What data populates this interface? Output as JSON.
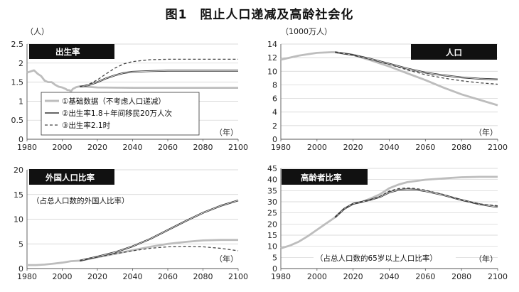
{
  "title": "图1　阻止人口递减及高龄社会化",
  "colors": {
    "baseline": "#bdbdbd",
    "scenario2": "#333333",
    "scenario3": "#444444",
    "grid": "#cfcfcf",
    "axis": "#555555",
    "banner": "#111111"
  },
  "chart_data": [
    {
      "type": "line",
      "title": "出生率",
      "unit_label": "（人）",
      "xlabel": "（年）",
      "xlim": [
        1980,
        2100
      ],
      "ylim": [
        0,
        2.5
      ],
      "yticks": [
        0,
        0.5,
        1,
        1.5,
        2,
        2.5
      ],
      "ytick_labels": [
        "0",
        "0.5",
        "1",
        "1.5",
        "2",
        "2.5"
      ],
      "xticks": [
        1980,
        2000,
        2020,
        2040,
        2060,
        2080,
        2100
      ],
      "grid": "horizontal",
      "legend_position": "bottom-left",
      "legend": [
        "①基础数据（不考虑人口递减）",
        "②出生率1.8＋年间移民20万人次",
        "③出生率2.1时"
      ],
      "series": [
        {
          "name": "①基础数据（不考虑人口递减）",
          "style": "baseline",
          "x": [
            1980,
            1982,
            1984,
            1986,
            1988,
            1990,
            1992,
            1994,
            1996,
            1998,
            2000,
            2002,
            2003,
            2004,
            2005,
            2006,
            2008,
            2010,
            2020,
            2040,
            2060,
            2080,
            2100
          ],
          "y": [
            1.75,
            1.78,
            1.81,
            1.72,
            1.66,
            1.54,
            1.5,
            1.5,
            1.43,
            1.38,
            1.36,
            1.32,
            1.29,
            1.29,
            1.26,
            1.32,
            1.37,
            1.39,
            1.36,
            1.35,
            1.35,
            1.35,
            1.35
          ]
        },
        {
          "name": "②出生率1.8＋年间移民20万人次",
          "style": "double",
          "x": [
            2010,
            2015,
            2020,
            2025,
            2030,
            2035,
            2040,
            2050,
            2060,
            2080,
            2100
          ],
          "y": [
            1.38,
            1.42,
            1.5,
            1.6,
            1.68,
            1.74,
            1.77,
            1.79,
            1.8,
            1.8,
            1.8
          ]
        },
        {
          "name": "③出生率2.1时",
          "style": "dashed",
          "x": [
            2010,
            2015,
            2020,
            2025,
            2030,
            2035,
            2040,
            2050,
            2060,
            2080,
            2100
          ],
          "y": [
            1.38,
            1.44,
            1.56,
            1.72,
            1.87,
            1.98,
            2.04,
            2.09,
            2.1,
            2.1,
            2.1
          ]
        }
      ]
    },
    {
      "type": "line",
      "title": "人口",
      "unit_label": "（1000万人）",
      "xlabel": "（年）",
      "xlim": [
        1980,
        2100
      ],
      "ylim": [
        0,
        14
      ],
      "yticks": [
        0,
        2,
        4,
        6,
        8,
        10,
        12,
        14
      ],
      "ytick_labels": [
        "0",
        "2",
        "4",
        "6",
        "8",
        "10",
        "12",
        "14"
      ],
      "xticks": [
        1980,
        2000,
        2020,
        2040,
        2060,
        2080,
        2100
      ],
      "grid": "horizontal",
      "series": [
        {
          "style": "baseline",
          "x": [
            1980,
            1990,
            2000,
            2008,
            2010,
            2020,
            2030,
            2040,
            2050,
            2060,
            2070,
            2080,
            2090,
            2100
          ],
          "y": [
            11.7,
            12.3,
            12.7,
            12.8,
            12.8,
            12.4,
            11.6,
            10.7,
            9.7,
            8.7,
            7.6,
            6.6,
            5.8,
            5.0
          ]
        },
        {
          "style": "double",
          "x": [
            2010,
            2020,
            2030,
            2040,
            2050,
            2060,
            2070,
            2080,
            2090,
            2100
          ],
          "y": [
            12.8,
            12.4,
            11.8,
            11.1,
            10.4,
            9.8,
            9.4,
            9.1,
            8.9,
            8.8
          ]
        },
        {
          "style": "dashed",
          "x": [
            2010,
            2020,
            2030,
            2040,
            2050,
            2060,
            2070,
            2080,
            2090,
            2100
          ],
          "y": [
            12.8,
            12.4,
            11.7,
            11.0,
            10.2,
            9.5,
            9.0,
            8.6,
            8.3,
            8.1
          ]
        }
      ]
    },
    {
      "type": "line",
      "title": "外国人口比率",
      "subtitle": "（占总人口数的外国人比率）",
      "xlabel": "（年）",
      "xlim": [
        1980,
        2100
      ],
      "ylim": [
        0,
        20
      ],
      "yticks": [
        0,
        5,
        10,
        15,
        20
      ],
      "ytick_labels": [
        "0",
        "5",
        "10",
        "15",
        "20"
      ],
      "xticks": [
        1980,
        2000,
        2020,
        2040,
        2060,
        2080,
        2100
      ],
      "grid": "horizontal",
      "series": [
        {
          "style": "baseline",
          "x": [
            1980,
            1985,
            1990,
            1995,
            2000,
            2005,
            2010,
            2020,
            2030,
            2040,
            2050,
            2060,
            2070,
            2080,
            2090,
            2100
          ],
          "y": [
            0.7,
            0.7,
            0.8,
            1.0,
            1.2,
            1.5,
            1.6,
            2.3,
            3.0,
            3.7,
            4.4,
            5.0,
            5.4,
            5.7,
            5.8,
            5.8
          ]
        },
        {
          "style": "double",
          "x": [
            2010,
            2020,
            2030,
            2040,
            2050,
            2060,
            2070,
            2080,
            2090,
            2100
          ],
          "y": [
            1.6,
            2.4,
            3.3,
            4.5,
            6.0,
            7.8,
            9.6,
            11.3,
            12.7,
            13.8
          ]
        },
        {
          "style": "dashed",
          "x": [
            2010,
            2020,
            2030,
            2040,
            2050,
            2060,
            2070,
            2080,
            2090,
            2100
          ],
          "y": [
            1.6,
            2.3,
            3.0,
            3.6,
            4.1,
            4.4,
            4.5,
            4.4,
            4.1,
            3.6
          ]
        }
      ]
    },
    {
      "type": "line",
      "title": "高龄者比率",
      "subtitle": "（占总人口数的65岁以上人口比率）",
      "xlabel": "（年）",
      "xlim": [
        1980,
        2100
      ],
      "ylim": [
        0,
        45
      ],
      "yticks": [
        0,
        5,
        10,
        15,
        20,
        25,
        30,
        35,
        40,
        45
      ],
      "ytick_labels": [
        "0",
        "5",
        "10",
        "15",
        "20",
        "25",
        "30",
        "35",
        "40",
        "45"
      ],
      "xticks": [
        1980,
        2000,
        2020,
        2040,
        2060,
        2080,
        2100
      ],
      "grid": "horizontal",
      "series": [
        {
          "style": "baseline",
          "x": [
            1980,
            1985,
            1990,
            1995,
            2000,
            2005,
            2010,
            2015,
            2020,
            2025,
            2030,
            2035,
            2040,
            2045,
            2050,
            2060,
            2070,
            2080,
            2090,
            2100
          ],
          "y": [
            9.1,
            10.3,
            12.1,
            14.6,
            17.4,
            20.2,
            23.0,
            26.8,
            29.1,
            30.0,
            31.6,
            33.4,
            36.1,
            37.7,
            38.8,
            39.9,
            40.5,
            41.0,
            41.2,
            41.2
          ]
        },
        {
          "style": "double",
          "x": [
            2010,
            2015,
            2020,
            2025,
            2030,
            2035,
            2040,
            2045,
            2050,
            2055,
            2060,
            2070,
            2080,
            2090,
            2100
          ],
          "y": [
            23.0,
            26.8,
            29.1,
            30.0,
            31.0,
            32.2,
            34.2,
            35.3,
            35.6,
            35.4,
            34.8,
            33.0,
            30.8,
            28.9,
            27.6
          ]
        },
        {
          "style": "dashed",
          "x": [
            2010,
            2015,
            2020,
            2025,
            2030,
            2035,
            2040,
            2045,
            2050,
            2055,
            2060,
            2070,
            2080,
            2090,
            2100
          ],
          "y": [
            23.0,
            26.8,
            29.1,
            30.0,
            31.0,
            32.5,
            34.8,
            35.9,
            36.2,
            35.9,
            35.2,
            33.3,
            30.8,
            29.0,
            28.2
          ]
        }
      ]
    }
  ]
}
